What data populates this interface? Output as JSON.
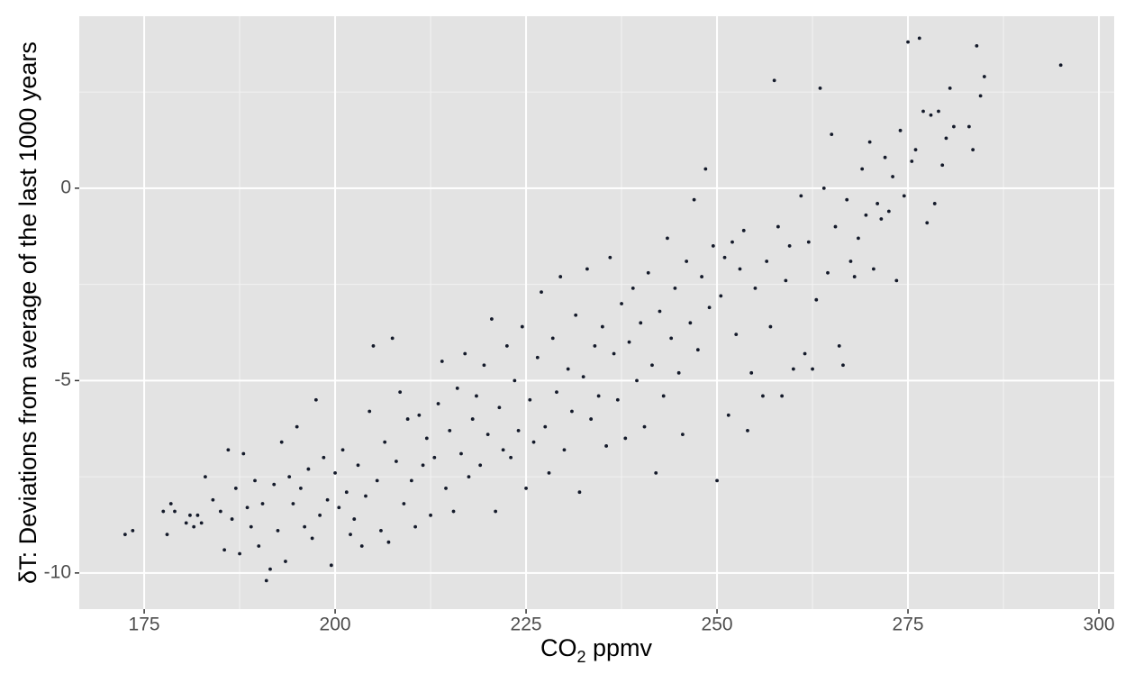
{
  "chart_data": {
    "type": "scatter",
    "xlabel": [
      "CO",
      "2",
      " ppmv"
    ],
    "ylabel": "δT: Deviations from average of the last 1000 years",
    "color": "#141a2a",
    "xlim": [
      166.5,
      302
    ],
    "ylim": [
      -10.94,
      4.47
    ],
    "xticks": [
      175,
      200,
      225,
      250,
      275,
      300
    ],
    "yticks": [
      -10,
      -5,
      0
    ],
    "x_minor_ticks": [
      187.5,
      212.5,
      237.5,
      262.5,
      287.5
    ],
    "y_minor_ticks": [
      -7.5,
      -2.5,
      2.5
    ],
    "grid": true,
    "x": [
      172.5,
      173.5,
      177.5,
      178,
      178.5,
      179,
      180.5,
      181,
      181.5,
      182,
      182.5,
      183,
      184,
      185,
      185.5,
      186,
      186.5,
      187,
      187.5,
      188,
      188.5,
      189,
      189.5,
      190,
      190.5,
      191,
      191.5,
      192,
      192.5,
      193,
      193.5,
      194,
      194.5,
      195,
      195.5,
      196,
      196.5,
      197,
      197.5,
      198,
      198.5,
      199,
      199.5,
      200,
      200.5,
      201,
      201.5,
      202,
      202.5,
      203,
      203.5,
      204,
      204.5,
      205,
      205.5,
      206,
      206.5,
      207,
      207.5,
      208,
      208.5,
      209,
      209.5,
      210,
      210.5,
      211,
      211.5,
      212,
      212.5,
      213,
      213.5,
      214,
      214.5,
      215,
      215.5,
      216,
      216.5,
      217,
      217.5,
      218,
      218.5,
      219,
      219.5,
      220,
      220.5,
      221,
      221.5,
      222,
      222.5,
      223,
      223.5,
      224,
      224.5,
      225,
      225.5,
      226,
      226.5,
      227,
      227.5,
      228,
      228.5,
      229,
      229.5,
      230,
      230.5,
      231,
      231.5,
      232,
      232.5,
      233,
      233.5,
      234,
      234.5,
      235,
      235.5,
      236,
      236.5,
      237,
      237.5,
      238,
      238.5,
      239,
      239.5,
      240,
      240.5,
      241,
      241.5,
      242,
      242.5,
      243,
      243.5,
      244,
      244.5,
      245,
      245.5,
      246,
      246.5,
      247,
      247.5,
      248,
      248.5,
      249,
      249.5,
      250,
      250.5,
      251,
      251.5,
      252,
      252.5,
      253,
      253.5,
      254,
      254.5,
      255,
      256,
      256.5,
      257,
      257.5,
      258,
      258.5,
      259,
      259.5,
      260,
      261,
      261.5,
      262,
      262.5,
      263,
      263.5,
      264,
      264.5,
      265,
      265.5,
      266,
      266.5,
      267,
      267.5,
      268,
      268.5,
      269,
      269.5,
      270,
      270.5,
      271,
      271.5,
      272,
      272.5,
      273,
      273.5,
      274,
      274.5,
      275,
      275.5,
      276,
      276.5,
      277,
      277.5,
      278,
      278.5,
      279,
      279.5,
      280,
      280.5,
      281,
      283,
      283.5,
      284,
      284.5,
      285,
      295
    ],
    "y": [
      -9,
      -8.9,
      -8.4,
      -9,
      -8.2,
      -8.4,
      -8.7,
      -8.5,
      -8.8,
      -8.5,
      -8.7,
      -7.5,
      -8.1,
      -8.4,
      -9.4,
      -6.8,
      -8.6,
      -7.8,
      -9.5,
      -6.9,
      -8.3,
      -8.8,
      -7.6,
      -9.3,
      -8.2,
      -10.2,
      -9.9,
      -7.7,
      -8.9,
      -6.6,
      -9.7,
      -7.5,
      -8.2,
      -6.2,
      -7.8,
      -8.8,
      -7.3,
      -9.1,
      -5.5,
      -8.5,
      -7.0,
      -8.1,
      -9.8,
      -7.4,
      -8.3,
      -6.8,
      -7.9,
      -9.0,
      -8.6,
      -7.2,
      -9.3,
      -8.0,
      -5.8,
      -4.1,
      -7.6,
      -8.9,
      -6.6,
      -9.2,
      -3.9,
      -7.1,
      -5.3,
      -8.2,
      -6.0,
      -7.6,
      -8.8,
      -5.9,
      -7.2,
      -6.5,
      -8.5,
      -7.0,
      -5.6,
      -4.5,
      -7.8,
      -6.3,
      -8.4,
      -5.2,
      -6.9,
      -4.3,
      -7.5,
      -6.0,
      -5.4,
      -7.2,
      -4.6,
      -6.4,
      -3.4,
      -8.4,
      -5.7,
      -6.8,
      -4.1,
      -7.0,
      -5.0,
      -6.3,
      -3.6,
      -7.8,
      -5.5,
      -6.6,
      -4.4,
      -2.7,
      -6.2,
      -7.4,
      -3.9,
      -5.3,
      -2.3,
      -6.8,
      -4.7,
      -5.8,
      -3.3,
      -7.9,
      -4.9,
      -2.1,
      -6.0,
      -4.1,
      -5.4,
      -3.6,
      -6.7,
      -1.8,
      -4.3,
      -5.5,
      -3.0,
      -6.5,
      -4.0,
      -2.6,
      -5.0,
      -3.5,
      -6.2,
      -2.2,
      -4.6,
      -7.4,
      -3.2,
      -5.4,
      -1.3,
      -3.9,
      -2.6,
      -4.8,
      -6.4,
      -1.9,
      -3.5,
      -0.3,
      -4.2,
      -2.3,
      0.5,
      -3.1,
      -1.5,
      -7.6,
      -2.8,
      -1.8,
      -5.9,
      -1.4,
      -3.8,
      -2.1,
      -1.1,
      -6.3,
      -4.8,
      -2.6,
      -5.4,
      -1.9,
      -3.6,
      2.8,
      -1.0,
      -5.4,
      -2.4,
      -1.5,
      -4.7,
      -0.2,
      -4.3,
      -1.4,
      -4.7,
      -2.9,
      2.6,
      0.0,
      -2.2,
      1.4,
      -1.0,
      -4.1,
      -4.6,
      -0.3,
      -1.9,
      -2.3,
      -1.3,
      0.5,
      -0.7,
      1.2,
      -2.1,
      -0.4,
      -0.8,
      0.8,
      -0.6,
      0.3,
      -2.4,
      1.5,
      -0.2,
      3.8,
      0.7,
      1.0,
      3.9,
      2.0,
      -0.9,
      1.9,
      -0.4,
      2.0,
      0.6,
      1.3,
      2.6,
      1.6,
      1.6,
      1.0,
      3.7,
      2.4,
      2.9,
      3.2
    ]
  }
}
